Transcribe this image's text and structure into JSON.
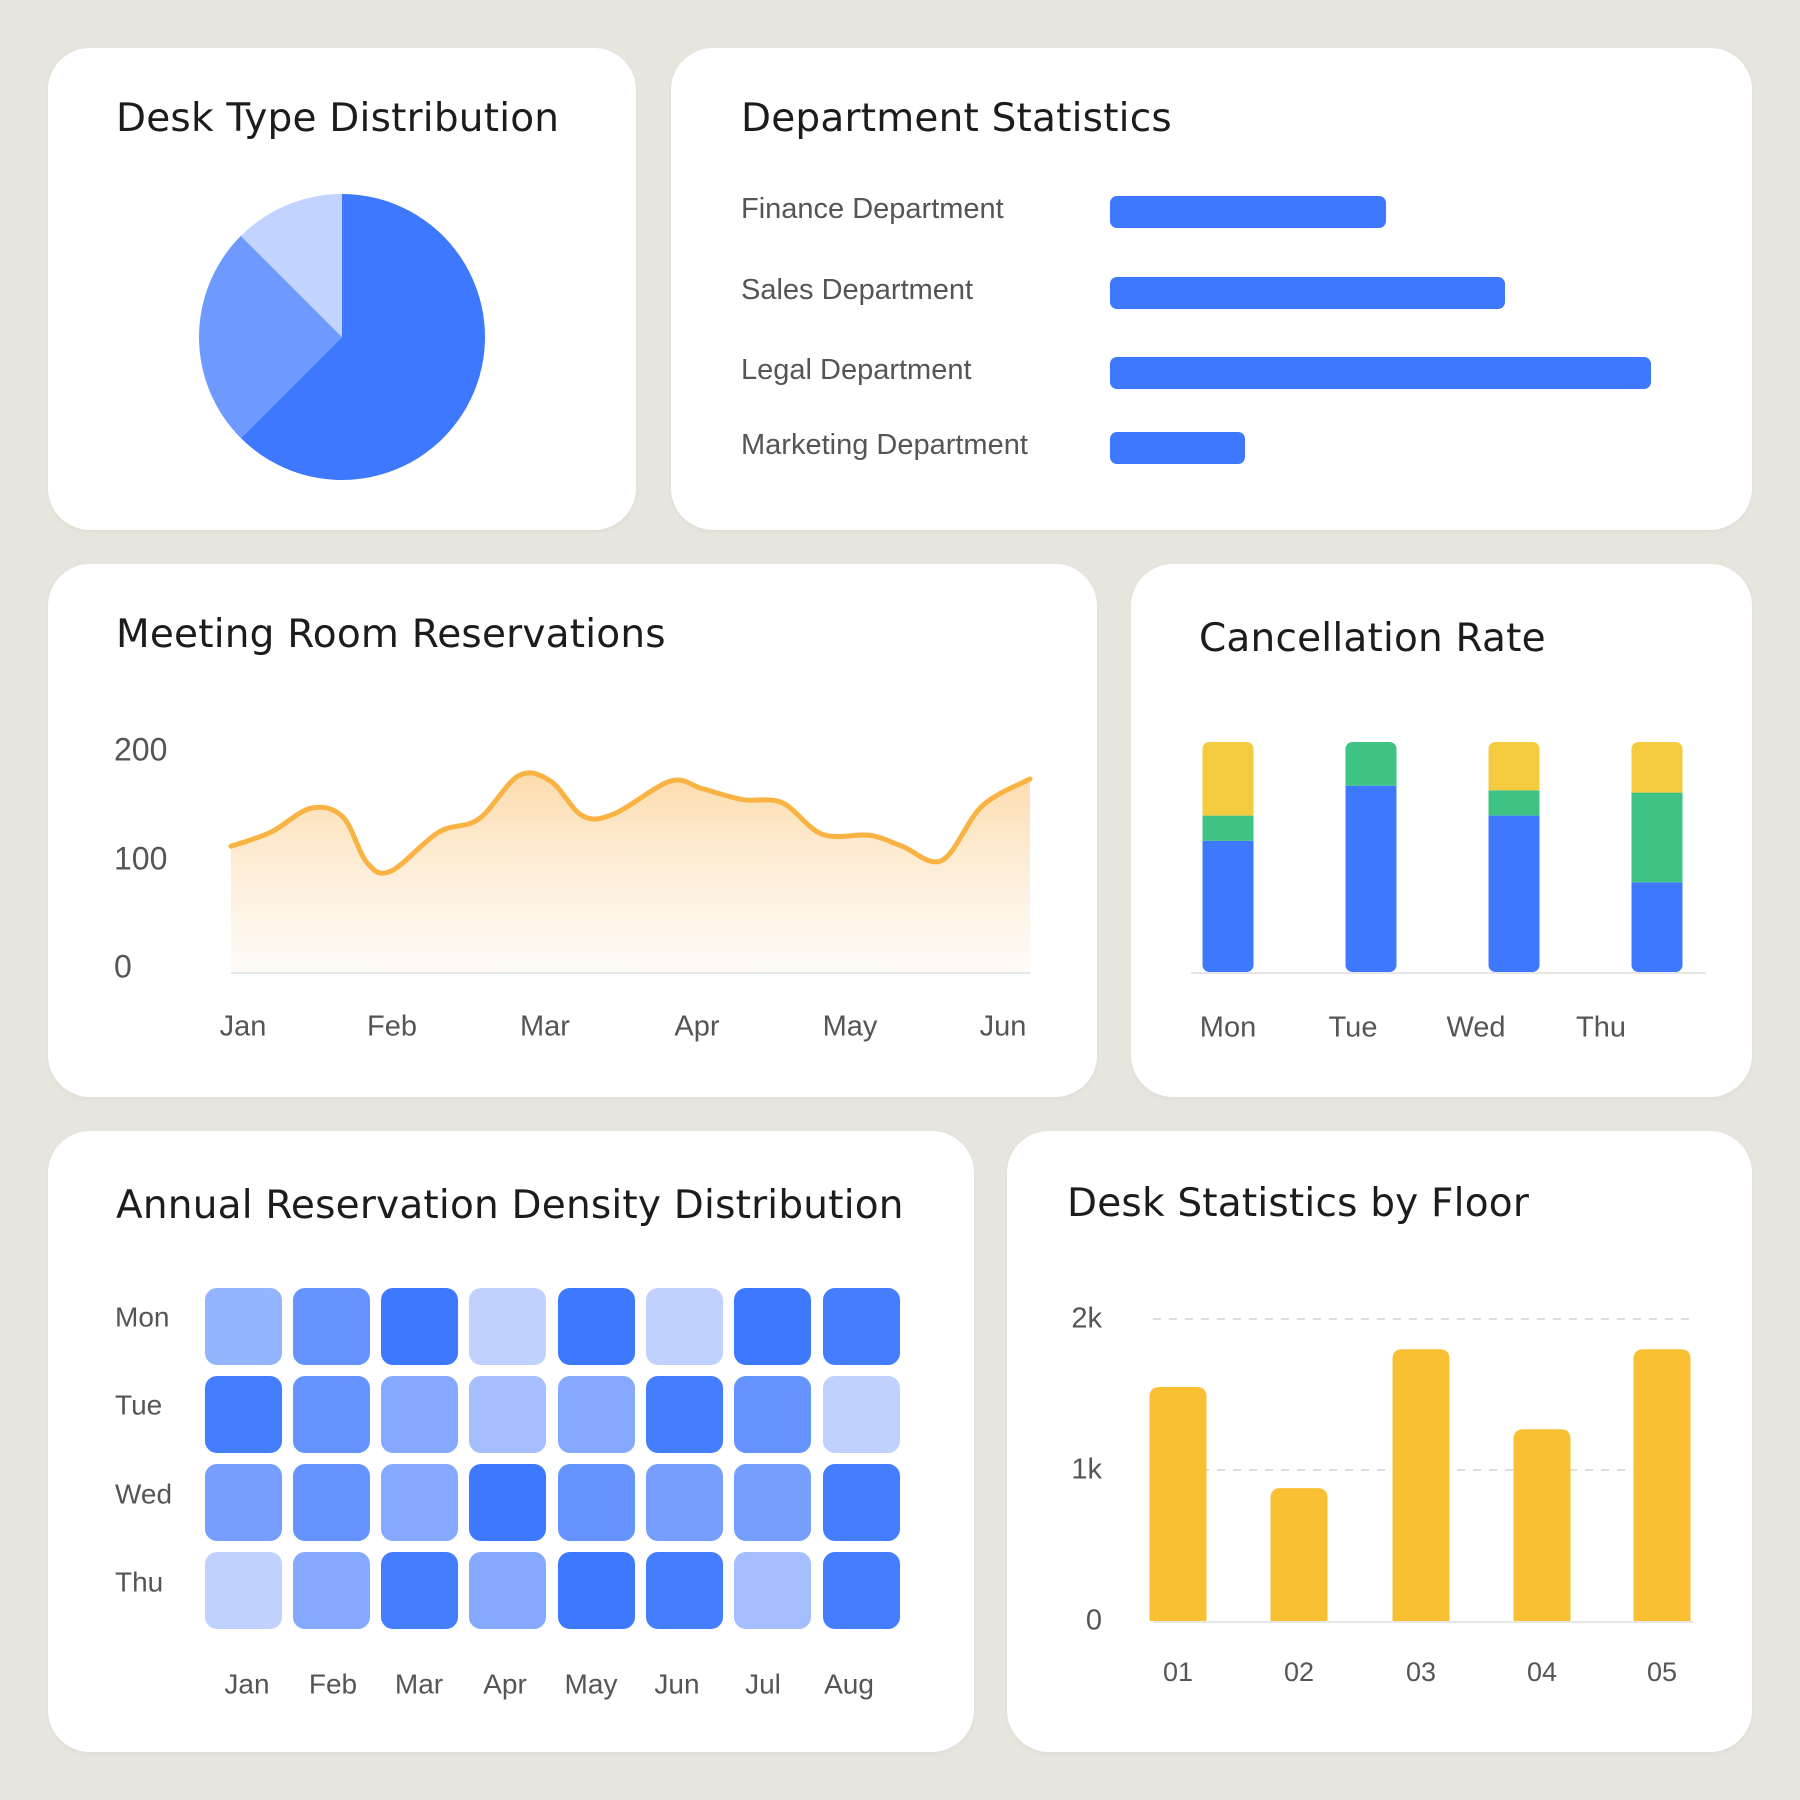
{
  "colors": {
    "page_bg": "#e8e5df",
    "card_bg": "#ffffff",
    "blue": "#3d78ff",
    "blue_mid": "#6e9aff",
    "blue_light": "#c2d3ff",
    "green": "#3ec384",
    "yellow": "#f4cb3e",
    "orange": "#f9b342",
    "amber": "#f9c034",
    "text_dark": "#1c1c1c",
    "text_muted": "#555555"
  },
  "cards": {
    "desk_type": {
      "title": "Desk Type Distribution"
    },
    "department": {
      "title": "Department Statistics"
    },
    "meeting": {
      "title": "Meeting Room Reservations"
    },
    "cancellation": {
      "title": "Cancellation Rate"
    },
    "density": {
      "title": "Annual Reservation Density Distribution"
    },
    "floor": {
      "title": "Desk Statistics by Floor"
    }
  },
  "chart_data": [
    {
      "id": "desk_type",
      "type": "pie",
      "title": "Desk Type Distribution",
      "slices": [
        {
          "value": 62.5,
          "color": "#3d78ff"
        },
        {
          "value": 25,
          "color": "#6e9aff"
        },
        {
          "value": 12.5,
          "color": "#c2d3ff"
        }
      ]
    },
    {
      "id": "department",
      "type": "bar",
      "orientation": "horizontal",
      "title": "Department Statistics",
      "categories": [
        "Finance Department",
        "Sales Department",
        "Legal Department",
        "Marketing Department"
      ],
      "values": [
        51,
        73,
        100,
        25
      ],
      "xlim": [
        0,
        100
      ]
    },
    {
      "id": "meeting",
      "type": "area",
      "title": "Meeting Room Reservations",
      "x": [
        "Jan",
        "Feb",
        "Mar",
        "Apr",
        "May",
        "Jun"
      ],
      "yticks": [
        "200",
        "100",
        "0"
      ],
      "ylim": [
        0,
        200
      ],
      "series_points": [
        [
          0.0,
          115
        ],
        [
          0.05,
          128
        ],
        [
          0.1,
          150
        ],
        [
          0.14,
          142
        ],
        [
          0.17,
          100
        ],
        [
          0.2,
          92
        ],
        [
          0.26,
          128
        ],
        [
          0.31,
          140
        ],
        [
          0.36,
          180
        ],
        [
          0.4,
          175
        ],
        [
          0.44,
          143
        ],
        [
          0.48,
          145
        ],
        [
          0.55,
          175
        ],
        [
          0.59,
          168
        ],
        [
          0.64,
          158
        ],
        [
          0.69,
          155
        ],
        [
          0.74,
          126
        ],
        [
          0.8,
          125
        ],
        [
          0.84,
          115
        ],
        [
          0.89,
          102
        ],
        [
          0.94,
          152
        ],
        [
          1.0,
          177
        ]
      ]
    },
    {
      "id": "cancellation",
      "type": "bar",
      "stacked": true,
      "title": "Cancellation Rate",
      "categories": [
        "Mon",
        "Tue",
        "Wed",
        "Thu"
      ],
      "ylim": [
        0,
        100
      ],
      "series": [
        {
          "color": "#3d78ff",
          "values": [
            57,
            81,
            68,
            39
          ]
        },
        {
          "color": "#3ec384",
          "values": [
            11,
            19,
            11,
            39
          ]
        },
        {
          "color": "#f4cb3e",
          "values": [
            32,
            0,
            21,
            22
          ]
        }
      ]
    },
    {
      "id": "density",
      "type": "heatmap",
      "title": "Annual Reservation Density Distribution",
      "rows": [
        "Mon",
        "Tue",
        "Wed",
        "Thu"
      ],
      "cols": [
        "Jan",
        "Feb",
        "Mar",
        "Apr",
        "May",
        "Jun",
        "Jul",
        "Aug"
      ],
      "values": [
        [
          0.45,
          0.75,
          1.0,
          0.18,
          1.0,
          0.18,
          1.0,
          0.95
        ],
        [
          0.95,
          0.75,
          0.55,
          0.35,
          0.55,
          0.95,
          0.75,
          0.18
        ],
        [
          0.65,
          0.75,
          0.55,
          1.0,
          0.75,
          0.65,
          0.65,
          0.95
        ],
        [
          0.18,
          0.55,
          0.95,
          0.55,
          1.0,
          0.95,
          0.35,
          0.95
        ]
      ]
    },
    {
      "id": "floor",
      "type": "bar",
      "title": "Desk Statistics by Floor",
      "categories": [
        "01",
        "02",
        "03",
        "04",
        "05"
      ],
      "values": [
        1550,
        880,
        1800,
        1270,
        1800
      ],
      "ylim": [
        0,
        2000
      ],
      "yticks": [
        "2k",
        "1k",
        "0"
      ],
      "grid": "dashed"
    }
  ]
}
